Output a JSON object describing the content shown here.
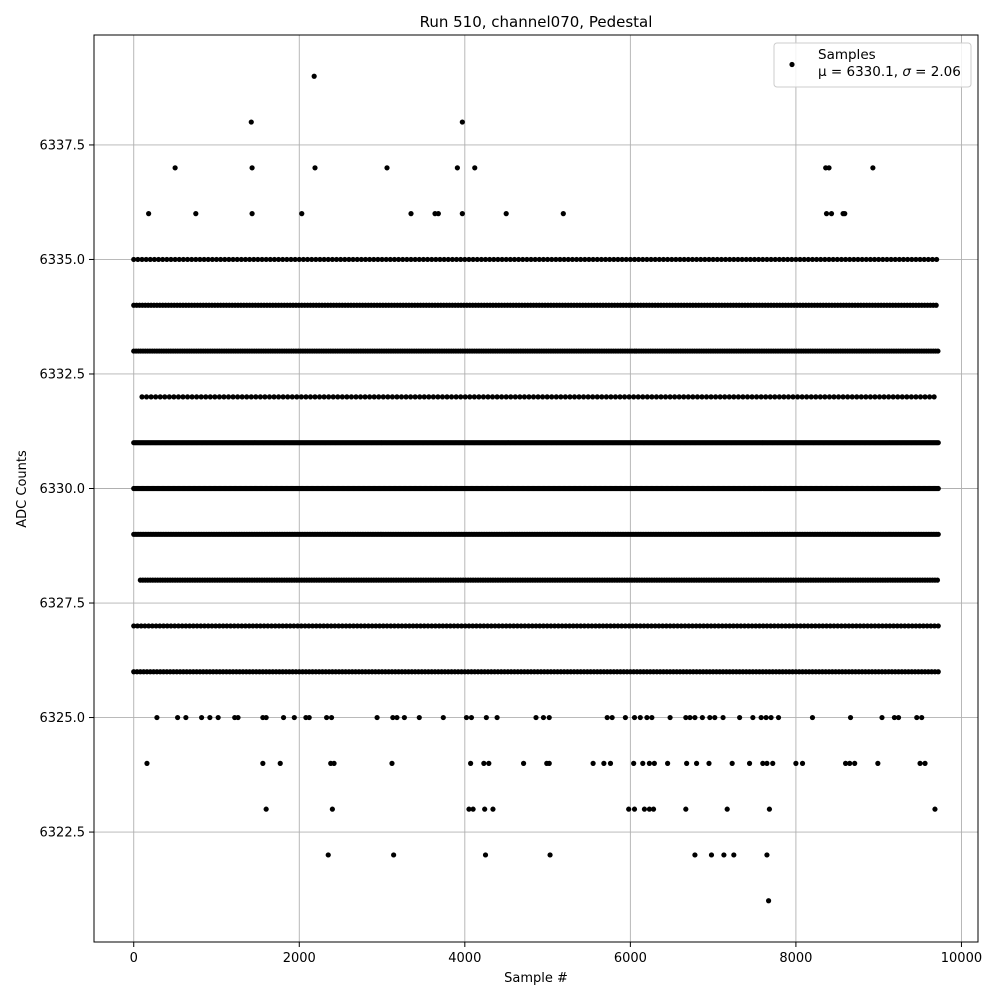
{
  "chart_data": {
    "type": "scatter",
    "title": "Run 510, channel070, Pedestal",
    "xlabel": "Sample #",
    "ylabel": "ADC Counts",
    "xlim": [
      -480,
      10200
    ],
    "ylim": [
      6320.1,
      6339.9
    ],
    "xticks": [
      0,
      2000,
      4000,
      6000,
      8000,
      10000
    ],
    "yticks": [
      6322.5,
      6325.0,
      6327.5,
      6330.0,
      6332.5,
      6335.0,
      6337.5
    ],
    "xtick_labels": [
      "0",
      "2000",
      "4000",
      "6000",
      "8000",
      "10000"
    ],
    "ytick_labels": [
      "6322.5",
      "6325.0",
      "6327.5",
      "6330.0",
      "6332.5",
      "6335.0",
      "6337.5"
    ],
    "grid": true,
    "legend": {
      "placement": "top-right",
      "label_line1": "Samples",
      "label_line2_prefix": "μ = 6330.1, ",
      "label_line2_sigma": "σ",
      "label_line2_suffix": " = 2.06"
    },
    "series": [
      {
        "name": "Samples",
        "color": "#000000",
        "marker": "circle",
        "dense_levels": [
          {
            "y": 6331,
            "x_start": 0,
            "x_end": 9720,
            "step": 15
          },
          {
            "y": 6330,
            "x_start": 0,
            "x_end": 9720,
            "step": 15
          },
          {
            "y": 6329,
            "x_start": 0,
            "x_end": 9720,
            "step": 20
          },
          {
            "y": 6333,
            "x_start": 0,
            "x_end": 9720,
            "step": 28
          },
          {
            "y": 6328,
            "x_start": 80,
            "x_end": 9720,
            "step": 30
          },
          {
            "y": 6334,
            "x_start": 0,
            "x_end": 9720,
            "step": 35
          },
          {
            "y": 6326,
            "x_start": 0,
            "x_end": 9720,
            "step": 40
          },
          {
            "y": 6327,
            "x_start": 0,
            "x_end": 9720,
            "step": 45
          },
          {
            "y": 6332,
            "x_start": 100,
            "x_end": 9700,
            "step": 55
          },
          {
            "y": 6335,
            "x_start": 0,
            "x_end": 9720,
            "step": 50
          }
        ],
        "sparse_points": [
          [
            160,
            6324
          ],
          [
            1560,
            6324
          ],
          [
            1770,
            6324
          ],
          [
            2380,
            6324
          ],
          [
            2420,
            6324
          ],
          [
            3120,
            6324
          ],
          [
            4070,
            6324
          ],
          [
            4230,
            6324
          ],
          [
            4290,
            6324
          ],
          [
            4710,
            6324
          ],
          [
            4990,
            6324
          ],
          [
            5020,
            6324
          ],
          [
            5550,
            6324
          ],
          [
            5680,
            6324
          ],
          [
            5760,
            6324
          ],
          [
            6040,
            6324
          ],
          [
            6150,
            6324
          ],
          [
            6230,
            6324
          ],
          [
            6290,
            6324
          ],
          [
            6450,
            6324
          ],
          [
            6680,
            6324
          ],
          [
            6800,
            6324
          ],
          [
            6950,
            6324
          ],
          [
            7230,
            6324
          ],
          [
            7440,
            6324
          ],
          [
            7600,
            6324
          ],
          [
            7650,
            6324
          ],
          [
            7720,
            6324
          ],
          [
            8000,
            6324
          ],
          [
            8080,
            6324
          ],
          [
            8600,
            6324
          ],
          [
            8650,
            6324
          ],
          [
            8710,
            6324
          ],
          [
            8990,
            6324
          ],
          [
            9500,
            6324
          ],
          [
            9560,
            6324
          ],
          [
            280,
            6325
          ],
          [
            530,
            6325
          ],
          [
            630,
            6325
          ],
          [
            820,
            6325
          ],
          [
            920,
            6325
          ],
          [
            1020,
            6325
          ],
          [
            1220,
            6325
          ],
          [
            1260,
            6325
          ],
          [
            1560,
            6325
          ],
          [
            1600,
            6325
          ],
          [
            1810,
            6325
          ],
          [
            1940,
            6325
          ],
          [
            2080,
            6325
          ],
          [
            2120,
            6325
          ],
          [
            2330,
            6325
          ],
          [
            2390,
            6325
          ],
          [
            2940,
            6325
          ],
          [
            3130,
            6325
          ],
          [
            3180,
            6325
          ],
          [
            3270,
            6325
          ],
          [
            3450,
            6325
          ],
          [
            3740,
            6325
          ],
          [
            4020,
            6325
          ],
          [
            4080,
            6325
          ],
          [
            4260,
            6325
          ],
          [
            4390,
            6325
          ],
          [
            4860,
            6325
          ],
          [
            4950,
            6325
          ],
          [
            5020,
            6325
          ],
          [
            5720,
            6325
          ],
          [
            5780,
            6325
          ],
          [
            5940,
            6325
          ],
          [
            6050,
            6325
          ],
          [
            6120,
            6325
          ],
          [
            6200,
            6325
          ],
          [
            6260,
            6325
          ],
          [
            6480,
            6325
          ],
          [
            6670,
            6325
          ],
          [
            6720,
            6325
          ],
          [
            6780,
            6325
          ],
          [
            6870,
            6325
          ],
          [
            6960,
            6325
          ],
          [
            7020,
            6325
          ],
          [
            7120,
            6325
          ],
          [
            7320,
            6325
          ],
          [
            7480,
            6325
          ],
          [
            7580,
            6325
          ],
          [
            7640,
            6325
          ],
          [
            7700,
            6325
          ],
          [
            7790,
            6325
          ],
          [
            8200,
            6325
          ],
          [
            8660,
            6325
          ],
          [
            9040,
            6325
          ],
          [
            9190,
            6325
          ],
          [
            9240,
            6325
          ],
          [
            9460,
            6325
          ],
          [
            9520,
            6325
          ],
          [
            1600,
            6323
          ],
          [
            2400,
            6323
          ],
          [
            4050,
            6323
          ],
          [
            4100,
            6323
          ],
          [
            4240,
            6323
          ],
          [
            4340,
            6323
          ],
          [
            5980,
            6323
          ],
          [
            6050,
            6323
          ],
          [
            6170,
            6323
          ],
          [
            6230,
            6323
          ],
          [
            6280,
            6323
          ],
          [
            6670,
            6323
          ],
          [
            7170,
            6323
          ],
          [
            7680,
            6323
          ],
          [
            9680,
            6323
          ],
          [
            2350,
            6322
          ],
          [
            3140,
            6322
          ],
          [
            4250,
            6322
          ],
          [
            5030,
            6322
          ],
          [
            6780,
            6322
          ],
          [
            6980,
            6322
          ],
          [
            7130,
            6322
          ],
          [
            7250,
            6322
          ],
          [
            7650,
            6322
          ],
          [
            7670,
            6321
          ],
          [
            180,
            6336
          ],
          [
            750,
            6336
          ],
          [
            1430,
            6336
          ],
          [
            2030,
            6336
          ],
          [
            3350,
            6336
          ],
          [
            3640,
            6336
          ],
          [
            3680,
            6336
          ],
          [
            3970,
            6336
          ],
          [
            4500,
            6336
          ],
          [
            5190,
            6336
          ],
          [
            8370,
            6336
          ],
          [
            8430,
            6336
          ],
          [
            8570,
            6336
          ],
          [
            8590,
            6336
          ],
          [
            500,
            6337
          ],
          [
            1430,
            6337
          ],
          [
            2190,
            6337
          ],
          [
            3060,
            6337
          ],
          [
            3910,
            6337
          ],
          [
            4120,
            6337
          ],
          [
            8360,
            6337
          ],
          [
            8400,
            6337
          ],
          [
            8930,
            6337
          ],
          [
            1420,
            6338
          ],
          [
            3970,
            6338
          ],
          [
            2180,
            6339
          ]
        ]
      }
    ]
  }
}
